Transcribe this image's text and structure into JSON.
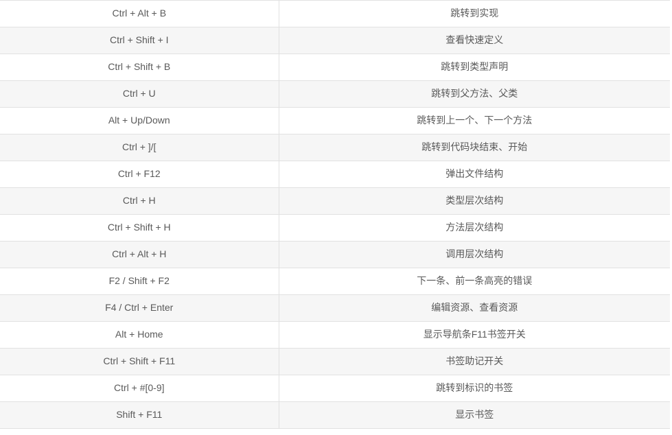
{
  "table": {
    "rows": [
      {
        "shortcut": "Ctrl + Alt + B",
        "description": "跳转到实现"
      },
      {
        "shortcut": "Ctrl + Shift + I",
        "description": "查看快速定义"
      },
      {
        "shortcut": "Ctrl + Shift + B",
        "description": "跳转到类型声明"
      },
      {
        "shortcut": "Ctrl + U",
        "description": "跳转到父方法、父类"
      },
      {
        "shortcut": "Alt + Up/Down",
        "description": "跳转到上一个、下一个方法"
      },
      {
        "shortcut": "Ctrl + ]/[",
        "description": "跳转到代码块结束、开始"
      },
      {
        "shortcut": "Ctrl + F12",
        "description": "弹出文件结构"
      },
      {
        "shortcut": "Ctrl + H",
        "description": "类型层次结构"
      },
      {
        "shortcut": "Ctrl + Shift + H",
        "description": "方法层次结构"
      },
      {
        "shortcut": "Ctrl + Alt + H",
        "description": "调用层次结构"
      },
      {
        "shortcut": "F2 / Shift + F2",
        "description": "下一条、前一条高亮的错误"
      },
      {
        "shortcut": "F4 / Ctrl + Enter",
        "description": "编辑资源、查看资源"
      },
      {
        "shortcut": "Alt + Home",
        "description": "显示导航条F11书签开关"
      },
      {
        "shortcut": "Ctrl + Shift + F11",
        "description": "书签助记开关"
      },
      {
        "shortcut": "Ctrl + #[0-9]",
        "description": "跳转到标识的书签"
      },
      {
        "shortcut": "Shift + F11",
        "description": "显示书签"
      }
    ]
  },
  "colors": {
    "border": "#e1e1e1",
    "row_alt_background": "#f6f6f6",
    "row_background": "#ffffff",
    "text": "#595959"
  }
}
